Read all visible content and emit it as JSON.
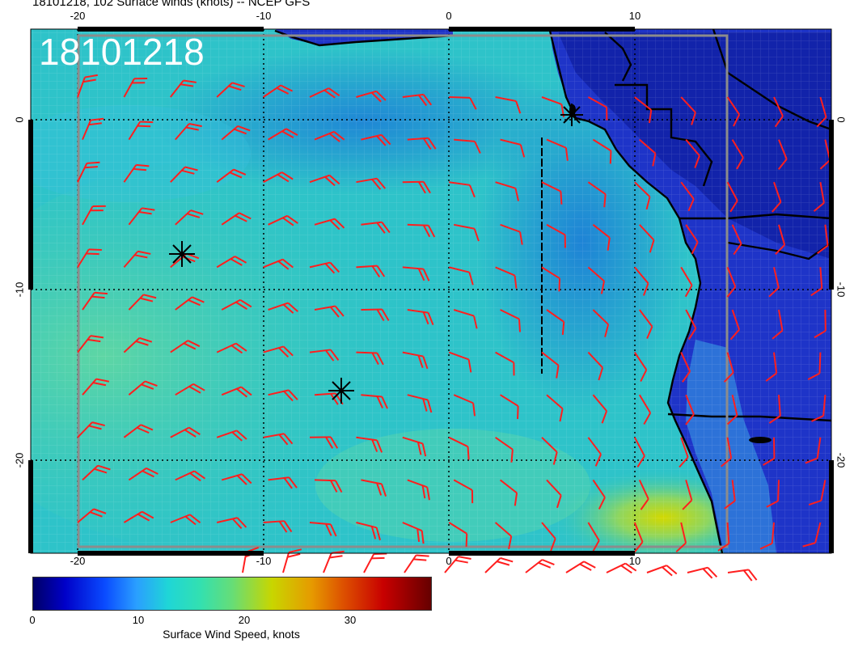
{
  "title": "18101218, 102 Surface winds (knots) -- NCEP GFS",
  "overlay_label": "18101218",
  "map": {
    "lon_ticks_top": [
      "-20",
      "-10",
      "0",
      "10"
    ],
    "lon_ticks_bottom": [
      "-20",
      "-10",
      "0",
      "10"
    ],
    "lat_ticks_left": [
      "0",
      "-10",
      "-20"
    ],
    "lat_ticks_right": [
      "0",
      "-10",
      "-20"
    ],
    "colors": {
      "barb": "#ff1e1e",
      "coast": "#000000",
      "grid": "#000000"
    }
  },
  "colorbar": {
    "ticks": [
      "0",
      "10",
      "20",
      "30"
    ],
    "label": "Surface Wind Speed, knots"
  }
}
